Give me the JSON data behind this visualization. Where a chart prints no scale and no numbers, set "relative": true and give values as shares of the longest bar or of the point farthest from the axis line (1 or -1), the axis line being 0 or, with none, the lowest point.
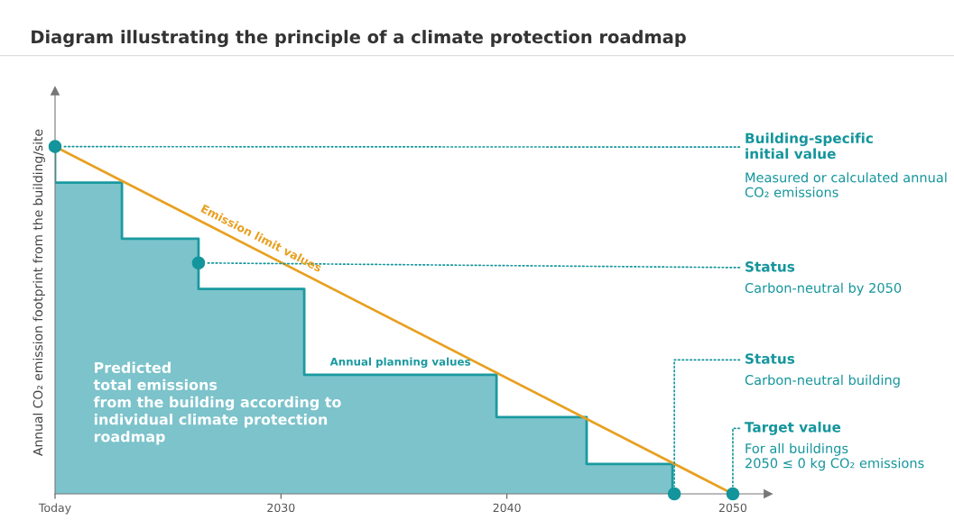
{
  "chart_data": {
    "type": "step",
    "title": "Diagram illustrating the principle of a climate protection roadmap",
    "ylabel": "Annual CO₂ emission footprint from the building/site",
    "relative": true,
    "xlim": [
      2020,
      2051.56
    ],
    "xticks": [
      {
        "value": 2020,
        "label": "Today"
      },
      2030,
      2040,
      2050
    ],
    "grid": false,
    "tick_labels": "x",
    "series": [
      {
        "type": "area",
        "color": "#7cc3cb",
        "x": [
          2020,
          2022.96,
          2022.96,
          2026.35,
          2026.35,
          2031.03,
          2031.03,
          2039.54,
          2039.54,
          2043.53,
          2043.53,
          2047.33,
          2047.33
        ],
        "values": [
          0.896,
          0.896,
          0.735,
          0.735,
          0.59,
          0.59,
          0.343,
          0.343,
          0.221,
          0.221,
          0.086,
          0.086,
          0
        ]
      },
      {
        "name": "Annual planning values",
        "color": "#1a9aa0",
        "x": [
          2020,
          2020,
          2022.96,
          2026.35,
          2031.03,
          2039.54,
          2043.53,
          2047.33
        ],
        "values": [
          1.0,
          0.896,
          0.735,
          0.59,
          0.343,
          0.221,
          0.086,
          0
        ]
      },
      {
        "name": "Emission limit values",
        "type": "line",
        "color": "#e8a020",
        "x": [
          2020,
          2050
        ],
        "values": [
          1.0,
          0
        ]
      },
      {
        "type": "scatter",
        "color": "#14959c",
        "marker": "circle",
        "x": [
          2020,
          2026.35,
          2047.41,
          2050
        ],
        "values": [
          1.0,
          0.665,
          0,
          0
        ]
      }
    ],
    "annotations": [
      {
        "text": "Building-specific\ninitial value",
        "x": 2020,
        "y": 1.0
      },
      "Measured or calculated annual\nCO₂ emissions",
      {
        "text": "Status",
        "x": 2026.35,
        "y": 0.665
      },
      "Carbon-neutral by 2050",
      {
        "text": "Status",
        "x": 2047.41,
        "y": 0
      },
      "Carbon-neutral building",
      {
        "text": "Target value",
        "x": 2050,
        "y": 0
      },
      "For all buildings\n2050 ≤ 0 kg CO₂ emissions",
      "Predicted\ntotal emissions\nfrom the building according to\nindividual climate protection\nroadmap"
    ]
  }
}
